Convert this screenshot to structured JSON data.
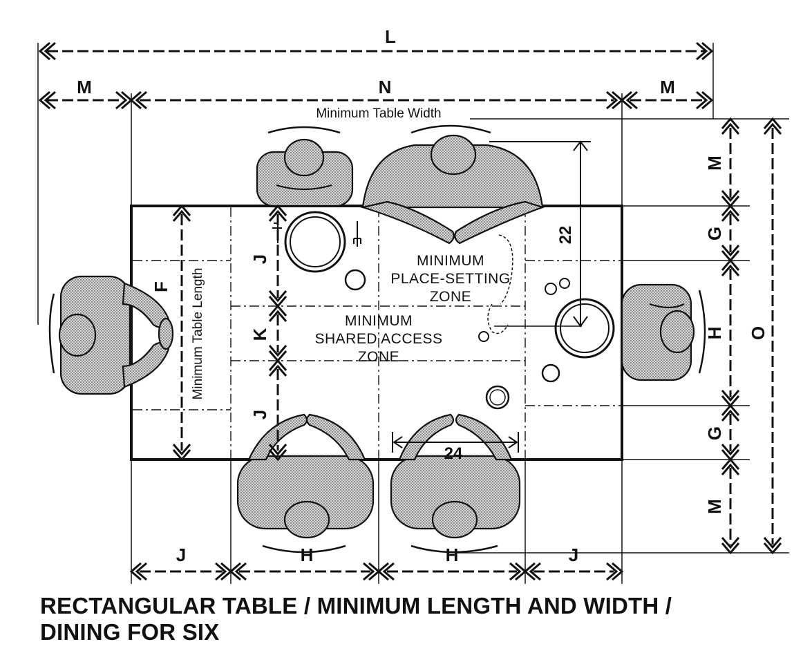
{
  "dimensions": {
    "L": "L",
    "M": "M",
    "N": "N",
    "O": "O",
    "G": "G",
    "H": "H",
    "J": "J",
    "K": "K",
    "F": "F"
  },
  "labels": {
    "min_table_width": "Minimum Table Width",
    "min_table_length": "Minimum Table Length",
    "place_setting_zone": [
      "MINIMUM",
      "PLACE-SETTING",
      "ZONE"
    ],
    "shared_access_zone": [
      "MINIMUM",
      "SHARED ACCESS",
      "ZONE"
    ],
    "dim_22": "22",
    "dim_24": "24"
  },
  "caption": {
    "line1": "RECTANGULAR TABLE / MINIMUM LENGTH AND WIDTH /",
    "line2": "DINING FOR SIX"
  },
  "style": {
    "ink": "#111111",
    "fill_shade": "#bdbdbd"
  }
}
